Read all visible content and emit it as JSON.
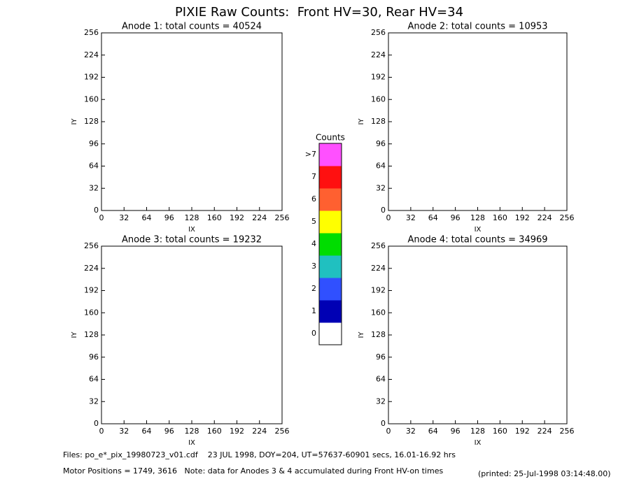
{
  "title": "PIXIE Raw Counts:  Front HV=30, Rear HV=34",
  "chart_data": [
    {
      "type": "heatmap",
      "title": "Anode 1: total counts = 40524",
      "xlabel": "IX",
      "ylabel": "IY",
      "xlim": [
        0,
        256
      ],
      "ylim": [
        0,
        256
      ],
      "xticks": [
        0,
        32,
        64,
        96,
        128,
        160,
        192,
        224,
        256
      ],
      "yticks": [
        0,
        32,
        64,
        96,
        128,
        160,
        192,
        224,
        256
      ]
    },
    {
      "type": "heatmap",
      "title": "Anode 2: total counts = 10953",
      "xlabel": "IX",
      "ylabel": "IY",
      "xlim": [
        0,
        256
      ],
      "ylim": [
        0,
        256
      ],
      "xticks": [
        0,
        32,
        64,
        96,
        128,
        160,
        192,
        224,
        256
      ],
      "yticks": [
        0,
        32,
        64,
        96,
        128,
        160,
        192,
        224,
        256
      ]
    },
    {
      "type": "heatmap",
      "title": "Anode 3: total counts = 19232",
      "xlabel": "IX",
      "ylabel": "IY",
      "xlim": [
        0,
        256
      ],
      "ylim": [
        0,
        256
      ],
      "xticks": [
        0,
        32,
        64,
        96,
        128,
        160,
        192,
        224,
        256
      ],
      "yticks": [
        0,
        32,
        64,
        96,
        128,
        160,
        192,
        224,
        256
      ]
    },
    {
      "type": "heatmap",
      "title": "Anode 4: total counts = 34969",
      "xlabel": "IX",
      "ylabel": "IY",
      "xlim": [
        0,
        256
      ],
      "ylim": [
        0,
        256
      ],
      "xticks": [
        0,
        32,
        64,
        96,
        128,
        160,
        192,
        224,
        256
      ],
      "yticks": [
        0,
        32,
        64,
        96,
        128,
        160,
        192,
        224,
        256
      ]
    }
  ],
  "colorbar": {
    "title": "Counts",
    "levels": [
      "0",
      "1",
      "2",
      "3",
      "4",
      "5",
      "6",
      "7",
      ">7"
    ],
    "colors": [
      "#ffffff",
      "#0000b4",
      "#3050ff",
      "#20c0c0",
      "#00dd00",
      "#ffff00",
      "#ff6030",
      "#ff1010",
      "#ff50ff"
    ]
  },
  "footer": {
    "files": "Files: po_e*_pix_19980723_v01.cdf    23 JUL 1998, DOY=204, UT=57637-60901 secs, 16.01-16.92 hrs",
    "motor": "Motor Positions = 1749, 3616   Note: data for Anodes 3 & 4 accumulated during Front HV-on times",
    "printed": "(printed: 25-Jul-1998 03:14:48.00)"
  }
}
